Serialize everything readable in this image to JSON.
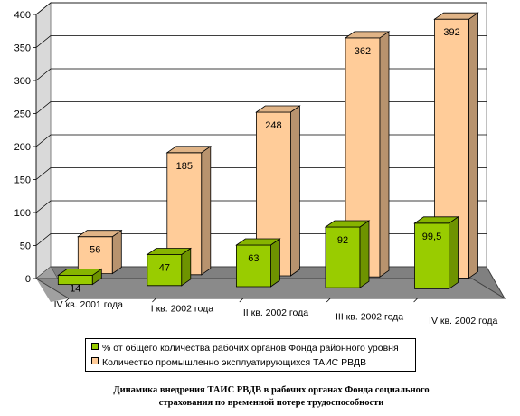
{
  "chart_data": {
    "type": "bar",
    "categories": [
      "IV кв. 2001 года",
      "I кв. 2002 года",
      "II кв. 2002 года",
      "III кв. 2002 года",
      "IV кв. 2002 года"
    ],
    "series": [
      {
        "name": "% от общего количества рабочих органов Фонда районного уровня",
        "values": [
          14,
          47,
          63,
          92,
          99.5
        ],
        "labels": [
          "14",
          "47",
          "63",
          "92",
          "99,5"
        ],
        "color": "#99cc00"
      },
      {
        "name": "Количество промышленно эксплуатирующихся ТАИС РВДВ",
        "values": [
          56,
          185,
          248,
          362,
          392
        ],
        "labels": [
          "56",
          "185",
          "248",
          "362",
          "392"
        ],
        "color": "#ffcc99"
      }
    ],
    "ylim": [
      0,
      400
    ],
    "yticks": [
      "0",
      "50",
      "100",
      "150",
      "200",
      "250",
      "300",
      "350",
      "400"
    ],
    "grid": true,
    "three_d": true,
    "legend_position": "bottom"
  },
  "caption": {
    "line1": "Динамика внедрения ТАИС РВДВ в рабочих органах Фонда социального",
    "line2": "страхования по временной потере трудоспособности"
  }
}
